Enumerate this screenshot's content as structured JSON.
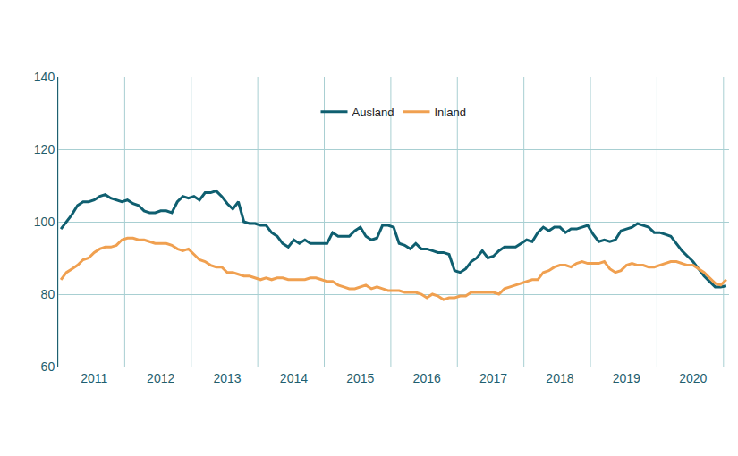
{
  "chart_data": {
    "type": "line",
    "categories": [
      null,
      null,
      null,
      null,
      null,
      null,
      "2011",
      null,
      null,
      null,
      null,
      null,
      null,
      null,
      null,
      null,
      null,
      null,
      "2012",
      null,
      null,
      null,
      null,
      null,
      null,
      null,
      null,
      null,
      null,
      null,
      "2013",
      null,
      null,
      null,
      null,
      null,
      null,
      null,
      null,
      null,
      null,
      null,
      "2014",
      null,
      null,
      null,
      null,
      null,
      null,
      null,
      null,
      null,
      null,
      null,
      "2015",
      null,
      null,
      null,
      null,
      null,
      null,
      null,
      null,
      null,
      null,
      null,
      "2016",
      null,
      null,
      null,
      null,
      null,
      null,
      null,
      null,
      null,
      null,
      null,
      "2017",
      null,
      null,
      null,
      null,
      null,
      null,
      null,
      null,
      null,
      null,
      null,
      "2018",
      null,
      null,
      null,
      null,
      null,
      null,
      null,
      null,
      null,
      null,
      null,
      "2019",
      null,
      null,
      null,
      null,
      null,
      null,
      null,
      null,
      null,
      null,
      null,
      "2020",
      null,
      null,
      null,
      null,
      null,
      null
    ],
    "series": [
      {
        "name": "Ausland",
        "color": "#0f5f70",
        "values": [
          98,
          100,
          102,
          104.5,
          105.5,
          105.5,
          106,
          107,
          107.5,
          106.5,
          106,
          105.5,
          106,
          105,
          104.5,
          103,
          102.5,
          102.5,
          103,
          103,
          102.5,
          105.5,
          107,
          106.5,
          107,
          106,
          108,
          108,
          108.5,
          107,
          105,
          103.5,
          105.5,
          100,
          99.5,
          99.5,
          99,
          99,
          97,
          96,
          94,
          93,
          95,
          94,
          95,
          94,
          94,
          94,
          94,
          97,
          96,
          96,
          96,
          97.5,
          98.5,
          96,
          95,
          95.5,
          99,
          99,
          98.5,
          94,
          93.5,
          92.5,
          94,
          92.5,
          92.5,
          92,
          91.5,
          91.5,
          91,
          86.5,
          86,
          87,
          89,
          90,
          92,
          90,
          90.5,
          92,
          93,
          93,
          93,
          94,
          95,
          94.5,
          97,
          98.5,
          97.5,
          98.5,
          98.5,
          97,
          98,
          98,
          98.5,
          99,
          96.5,
          94.5,
          95,
          94.5,
          95,
          97.5,
          98,
          98.5,
          99.5,
          99,
          98.5,
          97,
          97,
          96.5,
          96,
          94,
          92,
          90.5,
          89,
          87,
          85,
          83.5,
          82,
          82,
          82.3
        ]
      },
      {
        "name": "Inland",
        "color": "#f0a050",
        "values": [
          84,
          86,
          87,
          88,
          89.5,
          90,
          91.5,
          92.5,
          93,
          93,
          93.5,
          95,
          95.5,
          95.5,
          95,
          95,
          94.5,
          94,
          94,
          94,
          93.5,
          92.5,
          92,
          92.5,
          91,
          89.5,
          89,
          88,
          87.5,
          87.5,
          86,
          86,
          85.5,
          85,
          85,
          84.5,
          84,
          84.5,
          84,
          84.5,
          84.5,
          84,
          84,
          84,
          84,
          84.5,
          84.5,
          84,
          83.5,
          83.5,
          82.5,
          82,
          81.5,
          81.5,
          82,
          82.5,
          81.5,
          82,
          81.5,
          81,
          81,
          81,
          80.5,
          80.5,
          80.5,
          80,
          79,
          80,
          79.5,
          78.5,
          79,
          79,
          79.5,
          79.5,
          80.5,
          80.5,
          80.5,
          80.5,
          80.5,
          80,
          81.5,
          82,
          82.5,
          83,
          83.5,
          84,
          84,
          86,
          86.5,
          87.5,
          88,
          88,
          87.5,
          88.5,
          89,
          88.5,
          88.5,
          88.5,
          89,
          87,
          86,
          86.5,
          88,
          88.5,
          88,
          88,
          87.5,
          87.5,
          88,
          88.5,
          89,
          89,
          88.5,
          88,
          88,
          87,
          86,
          84.5,
          83,
          82.5,
          84
        ]
      }
    ],
    "ylim": [
      60,
      140
    ],
    "yticks": [
      60,
      80,
      100,
      120,
      140
    ],
    "grid": true,
    "legend": "top"
  }
}
